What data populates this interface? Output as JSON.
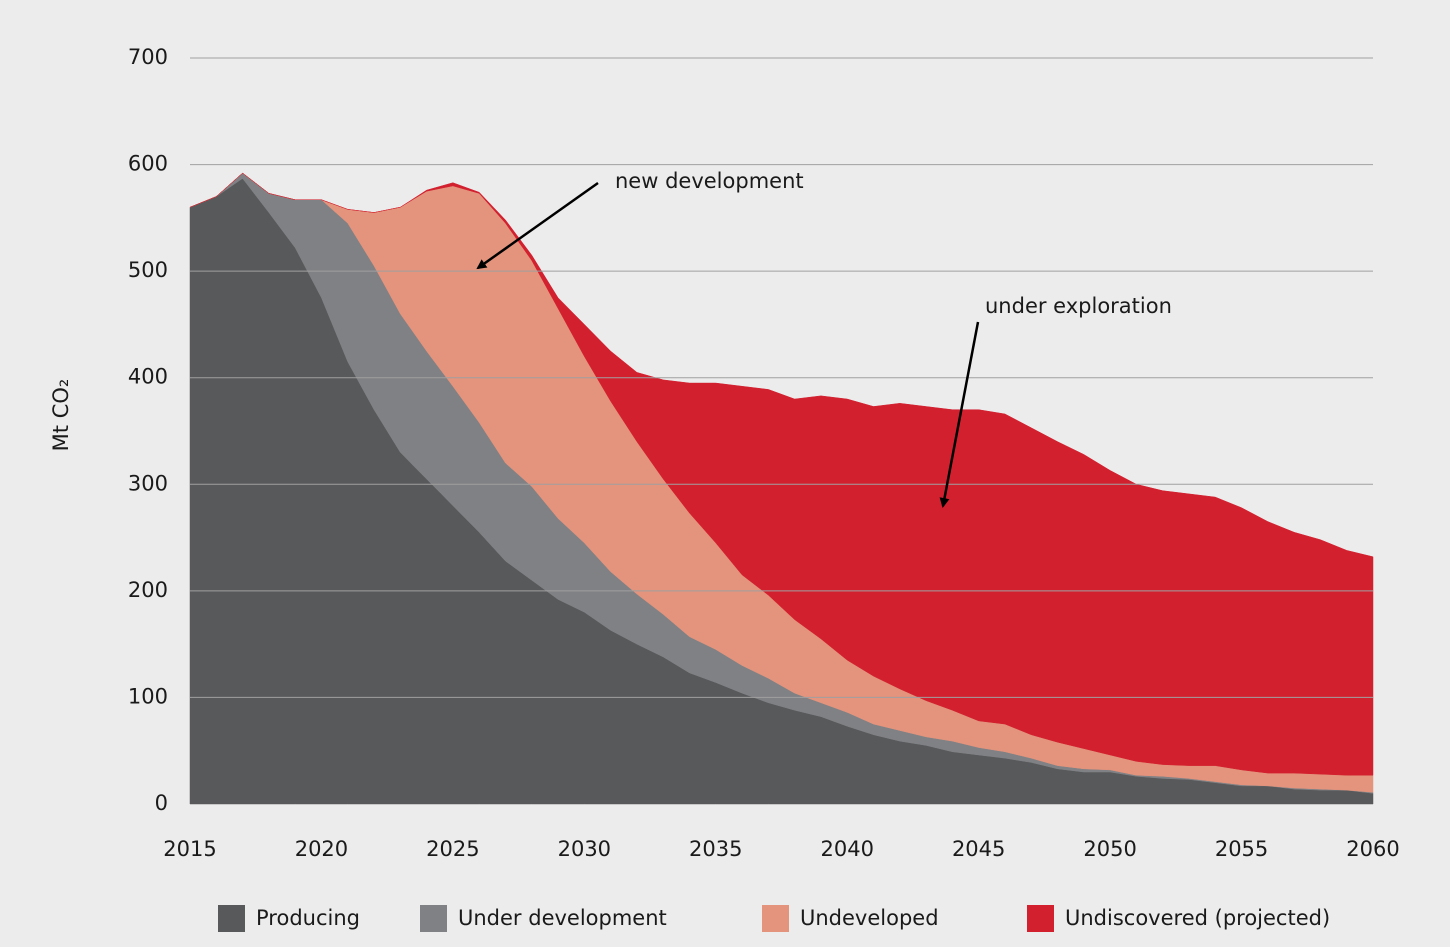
{
  "chart_data": {
    "type": "stacked_area",
    "y_label": "Mt CO₂",
    "annotations": [
      "new development",
      "under exploration"
    ],
    "legend": "bottom",
    "x": [
      2015,
      2016,
      2017,
      2018,
      2019,
      2020,
      2021,
      2022,
      2023,
      2024,
      2025,
      2026,
      2027,
      2028,
      2029,
      2030,
      2031,
      2032,
      2033,
      2034,
      2035,
      2036,
      2037,
      2038,
      2039,
      2040,
      2041,
      2042,
      2043,
      2044,
      2045,
      2046,
      2047,
      2048,
      2049,
      2050,
      2051,
      2052,
      2053,
      2054,
      2055,
      2056,
      2057,
      2058,
      2059,
      2060
    ],
    "xlim": [
      2015,
      2060
    ],
    "xticks": [
      2015,
      2020,
      2025,
      2030,
      2035,
      2040,
      2045,
      2050,
      2055,
      2060
    ],
    "ylim": [
      0,
      700
    ],
    "yticks": [
      0,
      100,
      200,
      300,
      400,
      500,
      600,
      700
    ],
    "grid": true,
    "series": [
      {
        "name": "Producing",
        "color": "#58595b",
        "values": [
          560,
          570,
          587,
          555,
          522,
          475,
          415,
          370,
          330,
          305,
          280,
          255,
          228,
          210,
          192,
          180,
          163,
          150,
          138,
          123,
          114,
          104,
          95,
          88,
          82,
          73,
          65,
          59,
          55,
          49,
          46,
          43,
          39,
          33,
          30,
          30,
          26,
          24,
          23,
          20,
          17,
          17,
          14,
          13,
          13,
          10
        ]
      },
      {
        "name": "Under development",
        "color": "#808184",
        "values": [
          0,
          0,
          5,
          18,
          45,
          92,
          130,
          135,
          130,
          120,
          112,
          103,
          92,
          88,
          76,
          65,
          55,
          47,
          40,
          34,
          31,
          26,
          23,
          16,
          13,
          13,
          10,
          10,
          8,
          10,
          7,
          6,
          4,
          3,
          3,
          2,
          1,
          2,
          1,
          1,
          1,
          0,
          1,
          1,
          0,
          1
        ]
      },
      {
        "name": "Undeveloped",
        "color": "#e4937c",
        "values": [
          0,
          0,
          0,
          0,
          0,
          0,
          13,
          50,
          100,
          150,
          188,
          215,
          225,
          212,
          197,
          175,
          160,
          143,
          127,
          116,
          100,
          85,
          78,
          69,
          60,
          49,
          45,
          39,
          34,
          29,
          25,
          26,
          22,
          22,
          19,
          14,
          13,
          11,
          12,
          15,
          14,
          12,
          14,
          14,
          14,
          16
        ]
      },
      {
        "name": "Undiscovered (projected)",
        "color": "#d2202f",
        "values": [
          0,
          0,
          0,
          0,
          0,
          0,
          0,
          0,
          0,
          1,
          3,
          1,
          3,
          5,
          10,
          30,
          47,
          65,
          93,
          122,
          150,
          177,
          193,
          207,
          228,
          245,
          253,
          268,
          276,
          282,
          292,
          291,
          288,
          282,
          276,
          267,
          260,
          257,
          255,
          252,
          246,
          236,
          226,
          220,
          211,
          205
        ]
      }
    ]
  }
}
